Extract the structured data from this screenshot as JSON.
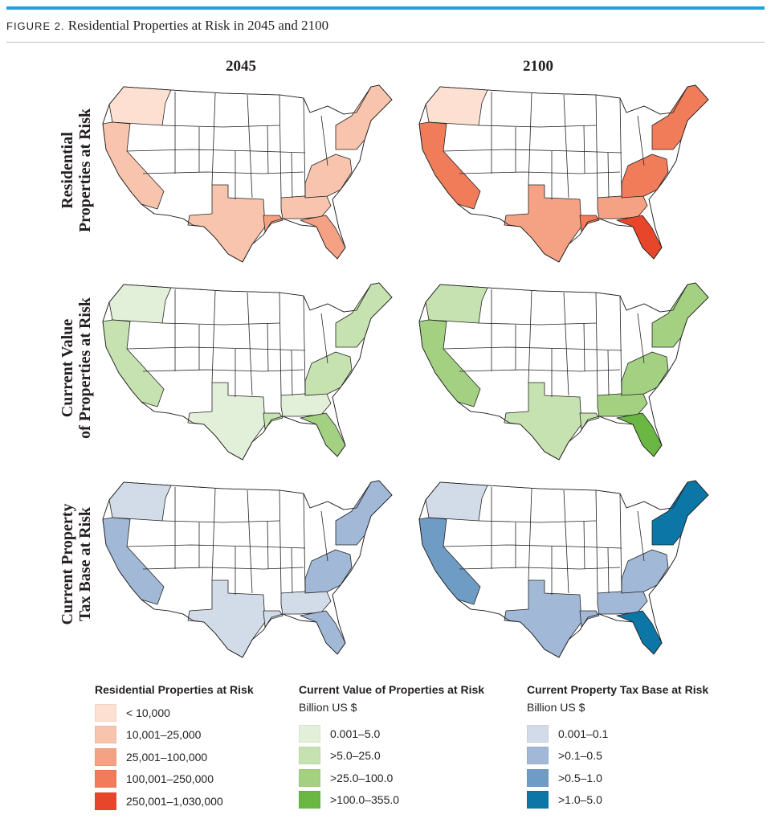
{
  "figure": {
    "number": "FIGURE 2.",
    "title": "Residential Properties at Risk in 2045 and 2100",
    "accent_color": "#1aa3e0"
  },
  "columns": [
    "2045",
    "2100"
  ],
  "rows": [
    {
      "label_line1": "Residential",
      "label_line2": "Properties at Risk"
    },
    {
      "label_line1": "Current Value",
      "label_line2": "of Properties at Risk"
    },
    {
      "label_line1": "Current Property",
      "label_line2": "Tax Base at Risk"
    }
  ],
  "legends": [
    {
      "title": "Residential Properties at Risk",
      "unit": "",
      "items": [
        {
          "label": "< 10,000",
          "color": "#fde0d2"
        },
        {
          "label": "10,001–25,000",
          "color": "#f9c4ad"
        },
        {
          "label": "25,001–100,000",
          "color": "#f5a284"
        },
        {
          "label": "100,001–250,000",
          "color": "#f07c5a"
        },
        {
          "label": "250,001–1,030,000",
          "color": "#e8462a"
        }
      ]
    },
    {
      "title": "Current Value of Properties at Risk",
      "unit": "Billion US $",
      "items": [
        {
          "label": "0.001–5.0",
          "color": "#e3f0d9"
        },
        {
          "label": ">5.0–25.0",
          "color": "#c7e2b1"
        },
        {
          "label": ">25.0–100.0",
          "color": "#a3d181"
        },
        {
          "label": ">100.0–355.0",
          "color": "#6ab743"
        }
      ]
    },
    {
      "title": "Current Property Tax Base at Risk",
      "unit": "Billion US $",
      "items": [
        {
          "label": "0.001–0.1",
          "color": "#d2dce9"
        },
        {
          "label": ">0.1–0.5",
          "color": "#a1b8d6"
        },
        {
          "label": ">0.5–1.0",
          "color": "#6f9cc5"
        },
        {
          "label": ">1.0–5.0",
          "color": "#0c76a6"
        }
      ]
    }
  ],
  "map_data": {
    "region_keys": [
      "wa_or",
      "ca",
      "tx",
      "la",
      "gulf",
      "fl",
      "east",
      "ne"
    ],
    "maps": [
      {
        "row": 0,
        "col": 0,
        "fills": {
          "wa_or": 0,
          "ca": 1,
          "tx": 1,
          "la": 2,
          "gulf": 1,
          "fl": 2,
          "east": 1,
          "ne": 1
        }
      },
      {
        "row": 0,
        "col": 1,
        "fills": {
          "wa_or": 0,
          "ca": 3,
          "tx": 2,
          "la": 3,
          "gulf": 2,
          "fl": 4,
          "east": 3,
          "ne": 3
        }
      },
      {
        "row": 1,
        "col": 0,
        "fills": {
          "wa_or": 0,
          "ca": 1,
          "tx": 0,
          "la": 1,
          "gulf": 0,
          "fl": 2,
          "east": 1,
          "ne": 1
        }
      },
      {
        "row": 1,
        "col": 1,
        "fills": {
          "wa_or": 1,
          "ca": 2,
          "tx": 1,
          "la": 1,
          "gulf": 2,
          "fl": 3,
          "east": 2,
          "ne": 2
        }
      },
      {
        "row": 2,
        "col": 0,
        "fills": {
          "wa_or": 0,
          "ca": 1,
          "tx": 0,
          "la": 0,
          "gulf": 0,
          "fl": 1,
          "east": 1,
          "ne": 1
        }
      },
      {
        "row": 2,
        "col": 1,
        "fills": {
          "wa_or": 0,
          "ca": 2,
          "tx": 1,
          "la": 1,
          "gulf": 1,
          "fl": 3,
          "east": 1,
          "ne": 3
        }
      }
    ]
  }
}
